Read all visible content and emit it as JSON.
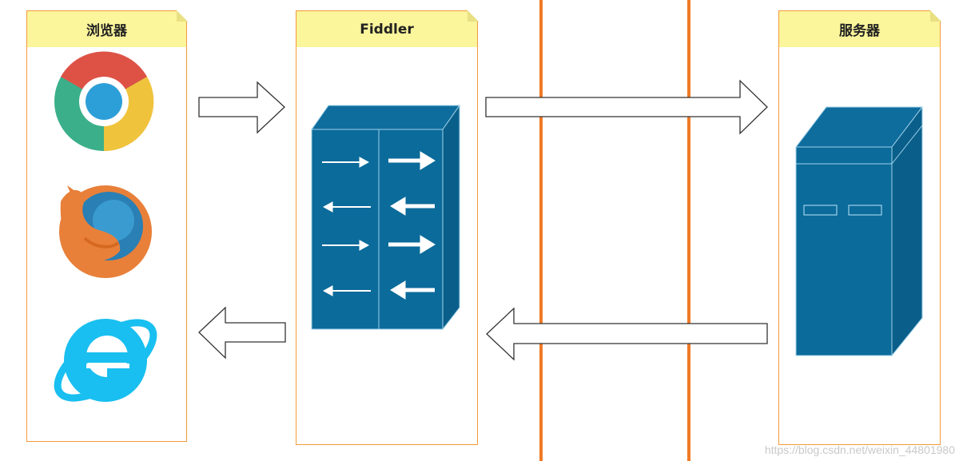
{
  "lanes": {
    "browser": "浏览器",
    "fiddler": "Fiddler",
    "server": "服务器"
  },
  "watermark": "https://blog.csdn.net/weixin_44801980",
  "colors": {
    "lane_border": "#f39a3c",
    "lane_header": "#fbf59b",
    "divider": "#f07a26",
    "device": "#0b6b9a"
  },
  "icons": [
    "chrome-icon",
    "firefox-icon",
    "ie-icon",
    "fiddler-switch-icon",
    "server-icon"
  ]
}
